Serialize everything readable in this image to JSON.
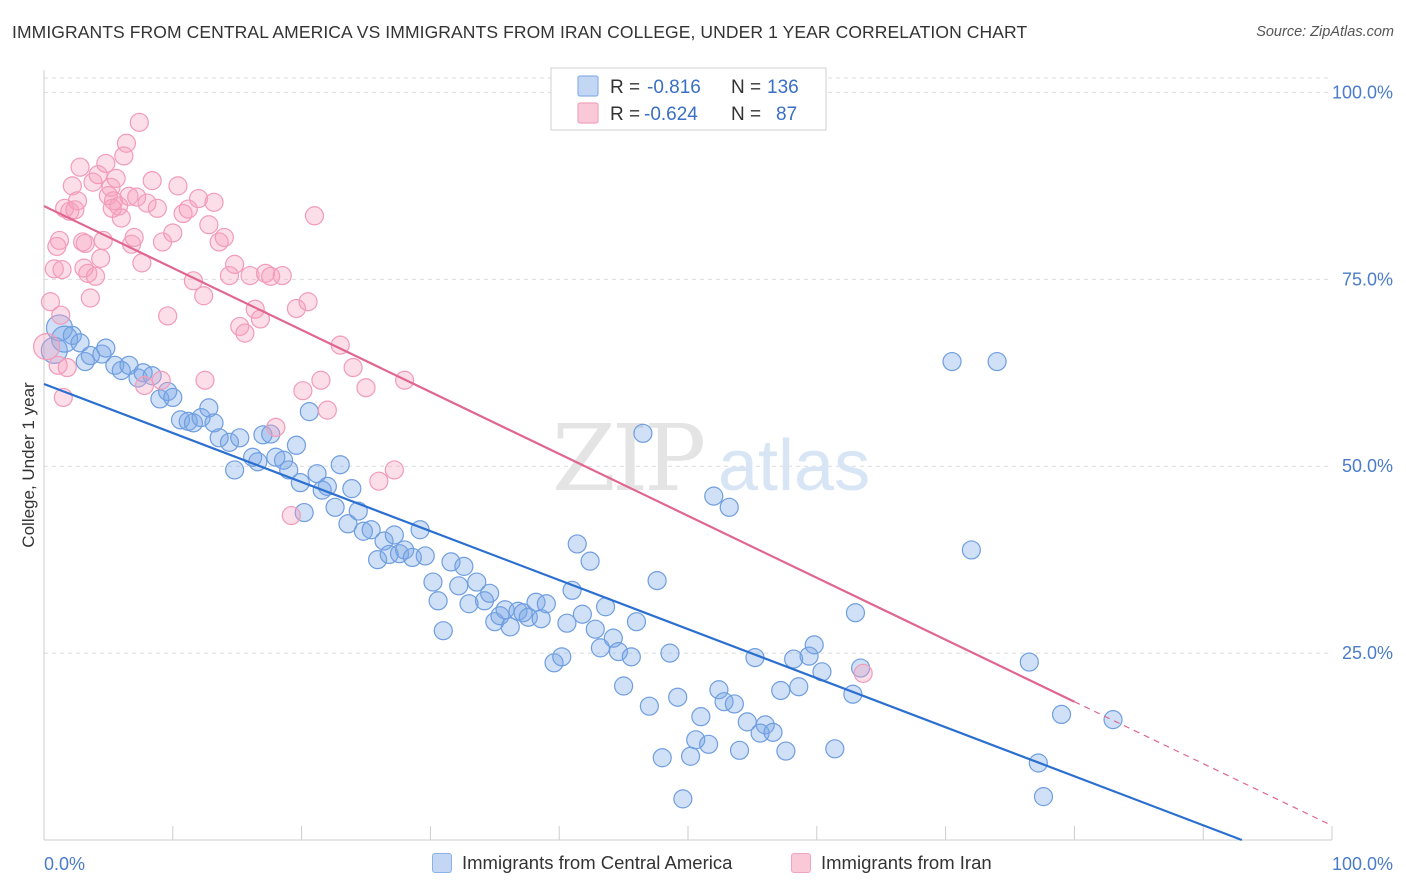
{
  "title": "IMMIGRANTS FROM CENTRAL AMERICA VS IMMIGRANTS FROM IRAN COLLEGE, UNDER 1 YEAR CORRELATION CHART",
  "source": "Source: ZipAtlas.com",
  "watermark": "ZIPatlas",
  "colors": {
    "blue": "#6f9ee0",
    "blue_line": "#2b6fd0",
    "pink": "#f29bb8",
    "pink_line": "#e06690",
    "axis_text": "#4a7cc9"
  },
  "legend": {
    "rows": [
      {
        "r_label": "R =",
        "r_value": "-0.816",
        "n_label": "N =",
        "n_value": "136"
      },
      {
        "r_label": "R =",
        "r_value": "-0.624",
        "n_label": "N =",
        "n_value": "87"
      }
    ]
  },
  "bottom_legend": [
    "Immigrants from Central America",
    "Immigrants from Iran"
  ],
  "chart_data": {
    "type": "scatter",
    "title": "IMMIGRANTS FROM CENTRAL AMERICA VS IMMIGRANTS FROM IRAN COLLEGE, UNDER 1 YEAR CORRELATION CHART",
    "xlabel": "",
    "ylabel": "College, Under 1 year",
    "xlim": [
      0,
      100
    ],
    "ylim": [
      0,
      103
    ],
    "x_tick_labels": [
      "0.0%",
      "100.0%"
    ],
    "y_tick_labels": [
      "25.0%",
      "50.0%",
      "75.0%",
      "100.0%"
    ],
    "y_ticks": [
      25,
      50,
      75,
      100
    ],
    "grid": true,
    "legend_position": "top-center",
    "series": [
      {
        "name": "Immigrants from Central America",
        "color": "#6f9ee0",
        "trend": {
          "x": [
            0,
            93
          ],
          "y": [
            61.0,
            0
          ]
        },
        "points": [
          [
            0.8,
            65.5
          ],
          [
            1.2,
            68.5
          ],
          [
            1.6,
            67
          ],
          [
            2.2,
            67.5
          ],
          [
            2.8,
            66.5
          ],
          [
            3.2,
            64
          ],
          [
            3.6,
            64.8
          ],
          [
            4.5,
            65
          ],
          [
            4.8,
            65.8
          ],
          [
            5.5,
            63.5
          ],
          [
            6,
            62.8
          ],
          [
            6.6,
            63.5
          ],
          [
            7.3,
            61.8
          ],
          [
            7.7,
            62.5
          ],
          [
            8.4,
            62.1
          ],
          [
            9,
            59
          ],
          [
            9.6,
            60
          ],
          [
            10,
            59.2
          ],
          [
            10.6,
            56.2
          ],
          [
            11.2,
            56
          ],
          [
            11.6,
            55.8
          ],
          [
            12.2,
            56.5
          ],
          [
            12.8,
            57.8
          ],
          [
            13.2,
            55.8
          ],
          [
            13.6,
            53.8
          ],
          [
            14.4,
            53.2
          ],
          [
            14.8,
            49.5
          ],
          [
            15.2,
            53.8
          ],
          [
            16.2,
            51.2
          ],
          [
            16.6,
            50.6
          ],
          [
            17,
            54.2
          ],
          [
            17.6,
            54.3
          ],
          [
            18,
            51.2
          ],
          [
            18.6,
            50.8
          ],
          [
            19,
            49.5
          ],
          [
            19.6,
            52.8
          ],
          [
            19.9,
            47.8
          ],
          [
            20.2,
            43.8
          ],
          [
            20.6,
            57.3
          ],
          [
            21.2,
            49
          ],
          [
            21.6,
            46.8
          ],
          [
            22,
            47.3
          ],
          [
            22.6,
            44.5
          ],
          [
            23,
            50.2
          ],
          [
            23.6,
            42.3
          ],
          [
            23.9,
            47
          ],
          [
            24.4,
            44
          ],
          [
            24.8,
            41.3
          ],
          [
            25.4,
            41.5
          ],
          [
            25.9,
            37.5
          ],
          [
            26.4,
            40
          ],
          [
            26.8,
            38.2
          ],
          [
            27.2,
            40.8
          ],
          [
            27.6,
            38.3
          ],
          [
            28,
            38.8
          ],
          [
            28.6,
            37.8
          ],
          [
            29.2,
            41.5
          ],
          [
            29.6,
            38
          ],
          [
            30.2,
            34.5
          ],
          [
            30.6,
            32
          ],
          [
            31,
            28
          ],
          [
            31.6,
            37.2
          ],
          [
            32.2,
            34
          ],
          [
            32.6,
            36.6
          ],
          [
            33,
            31.6
          ],
          [
            33.6,
            34.5
          ],
          [
            34.2,
            32
          ],
          [
            34.6,
            33
          ],
          [
            35,
            29.2
          ],
          [
            35.4,
            30
          ],
          [
            35.8,
            30.8
          ],
          [
            36.2,
            28.5
          ],
          [
            36.8,
            30.6
          ],
          [
            37.2,
            30.4
          ],
          [
            37.6,
            29.8
          ],
          [
            38.2,
            31.8
          ],
          [
            38.6,
            29.6
          ],
          [
            39,
            31.6
          ],
          [
            39.6,
            23.7
          ],
          [
            40.2,
            24.5
          ],
          [
            40.6,
            29
          ],
          [
            41,
            33.4
          ],
          [
            41.4,
            39.6
          ],
          [
            41.8,
            30.2
          ],
          [
            42.4,
            37.3
          ],
          [
            42.8,
            28.2
          ],
          [
            43.2,
            25.7
          ],
          [
            43.6,
            31.2
          ],
          [
            44.2,
            27
          ],
          [
            44.6,
            25.2
          ],
          [
            45,
            20.6
          ],
          [
            45.6,
            24.5
          ],
          [
            46,
            29.2
          ],
          [
            46.5,
            54.4
          ],
          [
            47,
            17.9
          ],
          [
            47.6,
            34.7
          ],
          [
            48,
            11
          ],
          [
            48.6,
            25
          ],
          [
            49.2,
            19.1
          ],
          [
            49.6,
            5.5
          ],
          [
            50.2,
            11.2
          ],
          [
            50.6,
            13.4
          ],
          [
            51,
            16.5
          ],
          [
            51.6,
            12.8
          ],
          [
            52,
            46
          ],
          [
            52.4,
            20.1
          ],
          [
            52.8,
            18.5
          ],
          [
            53.2,
            44.5
          ],
          [
            53.6,
            18.2
          ],
          [
            54,
            12
          ],
          [
            54.6,
            15.8
          ],
          [
            55.2,
            24.4
          ],
          [
            55.6,
            14.3
          ],
          [
            56,
            15.4
          ],
          [
            56.6,
            14.4
          ],
          [
            57.2,
            20
          ],
          [
            57.6,
            11.9
          ],
          [
            58.2,
            24.2
          ],
          [
            58.6,
            20.5
          ],
          [
            59.4,
            24.6
          ],
          [
            59.8,
            26.1
          ],
          [
            60.4,
            22.5
          ],
          [
            61.4,
            12.2
          ],
          [
            62.8,
            19.5
          ],
          [
            63,
            30.4
          ],
          [
            63.4,
            23
          ],
          [
            70.5,
            64
          ],
          [
            72,
            38.8
          ],
          [
            74,
            64
          ],
          [
            76.5,
            23.8
          ],
          [
            77.2,
            10.3
          ],
          [
            77.6,
            5.8
          ],
          [
            79,
            16.8
          ],
          [
            83,
            16.1
          ]
        ]
      },
      {
        "name": "Immigrants from Iran",
        "color": "#f29bb8",
        "trend": {
          "x": [
            0,
            80
          ],
          "y": [
            84.8,
            18.5
          ],
          "dashed_x": [
            80,
            100
          ]
        },
        "points": [
          [
            0.2,
            66
          ],
          [
            0.5,
            72
          ],
          [
            0.8,
            76.4
          ],
          [
            1,
            79.4
          ],
          [
            1.2,
            80.2
          ],
          [
            1.4,
            76.3
          ],
          [
            1.6,
            84.5
          ],
          [
            1.8,
            63.2
          ],
          [
            2,
            84.1
          ],
          [
            2.2,
            87.5
          ],
          [
            2.4,
            84.3
          ],
          [
            2.6,
            85.5
          ],
          [
            2.8,
            90
          ],
          [
            3,
            80
          ],
          [
            3.2,
            79.8
          ],
          [
            3.4,
            75.8
          ],
          [
            3.6,
            72.5
          ],
          [
            3.8,
            88
          ],
          [
            4,
            75.4
          ],
          [
            4.2,
            89
          ],
          [
            4.4,
            77.8
          ],
          [
            4.6,
            80.2
          ],
          [
            4.8,
            90.5
          ],
          [
            5,
            86.2
          ],
          [
            5.2,
            87.3
          ],
          [
            5.4,
            85.5
          ],
          [
            5.6,
            88.5
          ],
          [
            5.8,
            84.8
          ],
          [
            6,
            83.2
          ],
          [
            6.2,
            91.5
          ],
          [
            6.4,
            93.2
          ],
          [
            6.6,
            86.1
          ],
          [
            6.8,
            79.7
          ],
          [
            7,
            80.6
          ],
          [
            7.2,
            86
          ],
          [
            7.4,
            96
          ],
          [
            7.6,
            77.2
          ],
          [
            7.8,
            60.8
          ],
          [
            8,
            85.2
          ],
          [
            8.4,
            88.2
          ],
          [
            8.8,
            84.5
          ],
          [
            9.2,
            80
          ],
          [
            9.6,
            70.1
          ],
          [
            10,
            81.2
          ],
          [
            10.4,
            87.5
          ],
          [
            10.8,
            83.8
          ],
          [
            11.2,
            84.4
          ],
          [
            11.6,
            74.8
          ],
          [
            12,
            85.8
          ],
          [
            12.4,
            72.8
          ],
          [
            12.8,
            82.3
          ],
          [
            13.2,
            85.3
          ],
          [
            13.6,
            80
          ],
          [
            14,
            80.6
          ],
          [
            14.4,
            75.5
          ],
          [
            14.8,
            77
          ],
          [
            15.2,
            68.7
          ],
          [
            15.6,
            67.8
          ],
          [
            16,
            75.5
          ],
          [
            16.4,
            71
          ],
          [
            16.8,
            69.7
          ],
          [
            17.2,
            75.8
          ],
          [
            17.6,
            75.4
          ],
          [
            18,
            55.2
          ],
          [
            18.5,
            75.5
          ],
          [
            19.2,
            43.4
          ],
          [
            19.6,
            71.1
          ],
          [
            20.1,
            60.1
          ],
          [
            20.5,
            72
          ],
          [
            21,
            83.5
          ],
          [
            21.5,
            61.5
          ],
          [
            22,
            57.5
          ],
          [
            23,
            66.2
          ],
          [
            24,
            63.2
          ],
          [
            25,
            60.5
          ],
          [
            26,
            48
          ],
          [
            27.2,
            49.5
          ],
          [
            28,
            61.5
          ],
          [
            1.1,
            63.5
          ],
          [
            1.5,
            59.2
          ],
          [
            3.1,
            76.5
          ],
          [
            5.3,
            84.5
          ],
          [
            9.1,
            61.5
          ],
          [
            12.5,
            61.5
          ],
          [
            63.6,
            22.3
          ],
          [
            1.3,
            70.2
          ]
        ]
      }
    ]
  }
}
